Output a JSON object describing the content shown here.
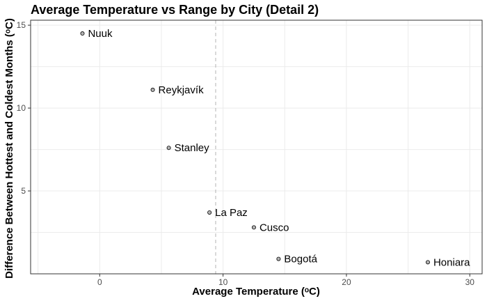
{
  "chart_data": {
    "type": "scatter",
    "title": "Average Temperature vs Range by City (Detail 2)",
    "xlabel": "Average Temperature (ᵒC)",
    "ylabel": "Difference Between Hottest and Coldest Months (ᵒC)",
    "xlim": [
      -5.6,
      31
    ],
    "ylim": [
      0,
      15.3
    ],
    "xticks": [
      0,
      10,
      20,
      30
    ],
    "yticks": [
      5,
      10,
      15
    ],
    "grid": true,
    "reference_line": {
      "axis": "x",
      "value": 9.4,
      "style": "dashed"
    },
    "points": [
      {
        "label": "Nuuk",
        "x": -1.4,
        "y": 14.5
      },
      {
        "label": "Reykjavík",
        "x": 4.3,
        "y": 11.1
      },
      {
        "label": "Stanley",
        "x": 5.6,
        "y": 7.6
      },
      {
        "label": "La Paz",
        "x": 8.9,
        "y": 3.7
      },
      {
        "label": "Cusco",
        "x": 12.5,
        "y": 2.8
      },
      {
        "label": "Bogotá",
        "x": 14.5,
        "y": 0.9
      },
      {
        "label": "Honiara",
        "x": 26.6,
        "y": 0.7
      }
    ]
  }
}
